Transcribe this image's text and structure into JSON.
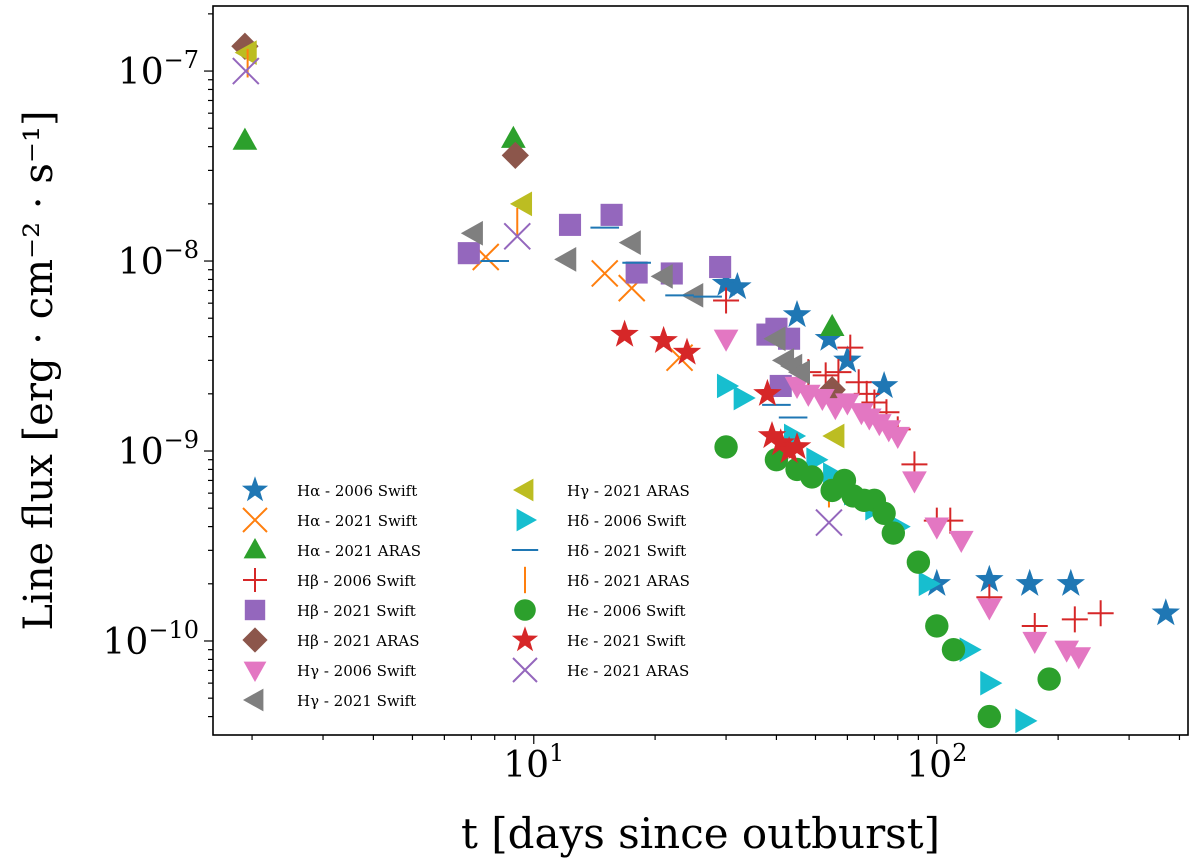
{
  "chart_data": {
    "type": "scatter",
    "x_scale": "log",
    "y_scale": "log",
    "xlabel": "t [days since outburst]",
    "ylabel": "Line flux [erg · cm⁻² · s⁻¹]",
    "xlim": [
      1.6,
      420
    ],
    "ylim": [
      3.2e-11,
      2.2e-07
    ],
    "x_ticks": [
      {
        "value": 10,
        "base": "10",
        "exp": "1"
      },
      {
        "value": 100,
        "base": "10",
        "exp": "2"
      }
    ],
    "y_ticks": [
      {
        "value": 1e-07,
        "base": "10",
        "exp": "−7"
      },
      {
        "value": 1e-08,
        "base": "10",
        "exp": "−8"
      },
      {
        "value": 1e-09,
        "base": "10",
        "exp": "−9"
      },
      {
        "value": 1e-10,
        "base": "10",
        "exp": "−10"
      }
    ],
    "legend_position": "lower-left",
    "series": [
      {
        "name": "Hα - 2006 Swift",
        "color": "#1f77b4",
        "marker": "star",
        "points": [
          [
            30,
            7.6e-09
          ],
          [
            32,
            7.3e-09
          ],
          [
            45,
            5.2e-09
          ],
          [
            54,
            3.9e-09
          ],
          [
            60,
            3e-09
          ],
          [
            74,
            2.2e-09
          ],
          [
            100,
            2e-10
          ],
          [
            135,
            2.1e-10
          ],
          [
            170,
            2e-10
          ],
          [
            215,
            2e-10
          ],
          [
            370,
            1.4e-10
          ]
        ]
      },
      {
        "name": "Hα - 2021 Swift",
        "color": "#ff7f0e",
        "marker": "x",
        "points": [
          [
            7.6,
            1.05e-08
          ],
          [
            15,
            8.6e-09
          ],
          [
            17.5,
            7.2e-09
          ],
          [
            23,
            3.1e-09
          ]
        ]
      },
      {
        "name": "Hα - 2021 ARAS",
        "color": "#2ca02c",
        "marker": "triangle-up",
        "points": [
          [
            1.92,
            4.3e-08
          ],
          [
            8.9,
            4.4e-08
          ],
          [
            55,
            4.5e-09
          ]
        ]
      },
      {
        "name": "Hβ - 2006 Swift",
        "color": "#d62728",
        "marker": "plus",
        "points": [
          [
            30,
            6.2e-09
          ],
          [
            48,
            2.6e-09
          ],
          [
            53,
            2.5e-09
          ],
          [
            57,
            2.6e-09
          ],
          [
            61,
            3.5e-09
          ],
          [
            64,
            2.3e-09
          ],
          [
            67,
            2e-09
          ],
          [
            70,
            1.8e-09
          ],
          [
            75,
            1.6e-09
          ],
          [
            80,
            1.3e-09
          ],
          [
            88,
            8.5e-10
          ],
          [
            100,
            4.3e-10
          ],
          [
            108,
            4.3e-10
          ],
          [
            135,
            1.7e-10
          ],
          [
            175,
            1.2e-10
          ],
          [
            220,
            1.3e-10
          ],
          [
            255,
            1.4e-10
          ]
        ]
      },
      {
        "name": "Hβ - 2021 Swift",
        "color": "#9467bd",
        "marker": "square",
        "points": [
          [
            6.9,
            1.1e-08
          ],
          [
            12.3,
            1.55e-08
          ],
          [
            15.6,
            1.75e-08
          ],
          [
            18,
            8.7e-09
          ],
          [
            22,
            8.6e-09
          ],
          [
            29,
            9.3e-09
          ],
          [
            38,
            4.1e-09
          ],
          [
            40,
            4.4e-09
          ],
          [
            41,
            2.2e-09
          ],
          [
            43,
            3.9e-09
          ]
        ]
      },
      {
        "name": "Hβ - 2021 ARAS",
        "color": "#8c564b",
        "marker": "diamond",
        "points": [
          [
            1.92,
            1.35e-07
          ],
          [
            9.0,
            3.6e-08
          ],
          [
            55,
            2.1e-09
          ]
        ]
      },
      {
        "name": "Hγ - 2006 Swift",
        "color": "#e377c2",
        "marker": "triangle-down",
        "points": [
          [
            30,
            3.9e-09
          ],
          [
            45,
            2.2e-09
          ],
          [
            48,
            2e-09
          ],
          [
            52,
            1.9e-09
          ],
          [
            56,
            1.7e-09
          ],
          [
            60,
            1.8e-09
          ],
          [
            65,
            1.6e-09
          ],
          [
            68,
            1.5e-09
          ],
          [
            72,
            1.4e-09
          ],
          [
            76,
            1.3e-09
          ],
          [
            80,
            1.2e-09
          ],
          [
            88,
            7e-10
          ],
          [
            100,
            4e-10
          ],
          [
            115,
            3.4e-10
          ],
          [
            135,
            1.5e-10
          ],
          [
            175,
            1e-10
          ],
          [
            210,
            9e-11
          ],
          [
            225,
            8.3e-11
          ]
        ]
      },
      {
        "name": "Hγ - 2021 Swift",
        "color": "#7f7f7f",
        "marker": "triangle-left",
        "points": [
          [
            7.1,
            1.4e-08
          ],
          [
            12.1,
            1.02e-08
          ],
          [
            17.5,
            1.25e-08
          ],
          [
            21,
            8.3e-09
          ],
          [
            25,
            6.6e-09
          ],
          [
            40,
            3.9e-09
          ],
          [
            42,
            3e-09
          ],
          [
            44,
            2.8e-09
          ],
          [
            46,
            2.6e-09
          ]
        ]
      },
      {
        "name": "Hγ - 2021 ARAS",
        "color": "#bcbd22",
        "marker": "triangle-left",
        "points": [
          [
            1.95,
            1.25e-07
          ],
          [
            9.4,
            2e-08
          ],
          [
            56,
            1.2e-09
          ]
        ]
      },
      {
        "name": "Hδ - 2006 Swift",
        "color": "#17becf",
        "marker": "triangle-right",
        "points": [
          [
            30,
            2.2e-09
          ],
          [
            33,
            1.9e-09
          ],
          [
            44,
            1.2e-09
          ],
          [
            50,
            9e-10
          ],
          [
            55,
            7.5e-10
          ],
          [
            62,
            6e-10
          ],
          [
            70,
            5e-10
          ],
          [
            80,
            4e-10
          ],
          [
            95,
            2e-10
          ],
          [
            120,
            9e-11
          ],
          [
            135,
            6e-11
          ],
          [
            165,
            3.8e-11
          ]
        ]
      },
      {
        "name": "Hδ - 2021 Swift",
        "color": "#1f77b4",
        "marker": "hline",
        "points": [
          [
            8,
            1e-08
          ],
          [
            15,
            1.5e-08
          ],
          [
            18,
            9.8e-09
          ],
          [
            23,
            6.6e-09
          ],
          [
            27,
            6.5e-09
          ],
          [
            40,
            1.75e-09
          ],
          [
            44,
            1.5e-09
          ]
        ]
      },
      {
        "name": "Hδ - 2021 ARAS",
        "color": "#ff7f0e",
        "marker": "vline",
        "points": [
          [
            1.95,
            1.1e-07
          ],
          [
            9.1,
            1.6e-08
          ],
          [
            54,
            6e-10
          ]
        ]
      },
      {
        "name": "Hϵ - 2006 Swift",
        "color": "#2ca02c",
        "marker": "circle",
        "points": [
          [
            30,
            1.05e-09
          ],
          [
            40,
            9e-10
          ],
          [
            45,
            8e-10
          ],
          [
            49,
            7.3e-10
          ],
          [
            55,
            6.2e-10
          ],
          [
            59,
            7e-10
          ],
          [
            62,
            5.8e-10
          ],
          [
            66,
            5.5e-10
          ],
          [
            70,
            5.5e-10
          ],
          [
            74,
            4.7e-10
          ],
          [
            78,
            3.7e-10
          ],
          [
            90,
            2.6e-10
          ],
          [
            100,
            1.2e-10
          ],
          [
            110,
            9e-11
          ],
          [
            135,
            4e-11
          ],
          [
            190,
            6.3e-11
          ]
        ]
      },
      {
        "name": "Hϵ - 2021 Swift",
        "color": "#d62728",
        "marker": "star",
        "points": [
          [
            16.8,
            4.1e-09
          ],
          [
            21,
            3.8e-09
          ],
          [
            24,
            3.3e-09
          ],
          [
            38,
            2e-09
          ],
          [
            39,
            1.2e-09
          ],
          [
            41,
            1.1e-09
          ],
          [
            43,
            1e-09
          ],
          [
            45,
            1.05e-09
          ]
        ]
      },
      {
        "name": "Hϵ - 2021 ARAS",
        "color": "#9467bd",
        "marker": "x",
        "points": [
          [
            1.93,
            1e-07
          ],
          [
            9.1,
            1.35e-08
          ],
          [
            54,
            4.2e-10
          ]
        ]
      }
    ]
  }
}
